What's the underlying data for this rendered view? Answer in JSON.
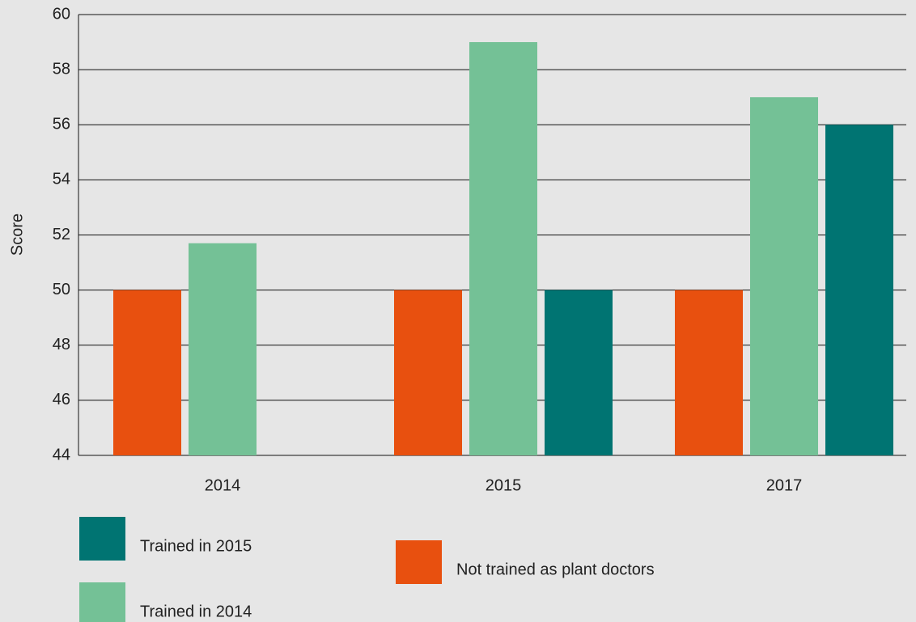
{
  "chart_data": {
    "type": "bar",
    "y_label": "Score",
    "categories": [
      "2014",
      "2015",
      "2017"
    ],
    "series": [
      {
        "name": "Not trained as plant doctors",
        "color": "#e8500f",
        "values": [
          50,
          50,
          50
        ]
      },
      {
        "name": "Trained in 2014",
        "color": "#74c196",
        "values": [
          51.7,
          59,
          57
        ]
      },
      {
        "name": "Trained in 2015",
        "color": "#007472",
        "values": [
          null,
          50,
          56
        ]
      }
    ],
    "ylim": [
      44,
      60
    ],
    "yticks": [
      44,
      46,
      48,
      50,
      52,
      54,
      56,
      58,
      60
    ],
    "grid": true
  }
}
